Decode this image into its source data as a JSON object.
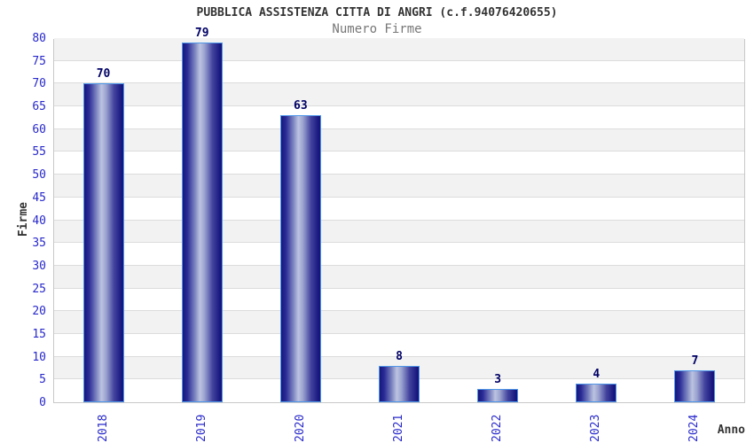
{
  "chart_data": {
    "type": "bar",
    "title": "PUBBLICA ASSISTENZA CITTA DI ANGRI (c.f.94076420655)",
    "subtitle": "Numero Firme",
    "xlabel": "Anno",
    "ylabel": "Firme",
    "categories": [
      "2018",
      "2019",
      "2020",
      "2021",
      "2022",
      "2023",
      "2024"
    ],
    "values": [
      70,
      79,
      63,
      8,
      3,
      4,
      7
    ],
    "ylim": [
      0,
      80
    ],
    "ytick_step": 5,
    "grid": true,
    "legend": false,
    "value_labels_shown": true,
    "colors": {
      "title_text": "#333333",
      "subtitle_text": "#777777",
      "axis_label_text": "#333333",
      "tick_text": "#2929cc",
      "value_label_text": "#000066",
      "band_gray": "#f2f2f2",
      "band_white": "#ffffff",
      "gridline": "#dcdcdc",
      "plot_border": "#c8c8c8",
      "bar_dark": "#16167e",
      "bar_mid": "#8088c2",
      "bar_light": "#bcc3e1",
      "bar_border": "#4e96e8"
    }
  }
}
